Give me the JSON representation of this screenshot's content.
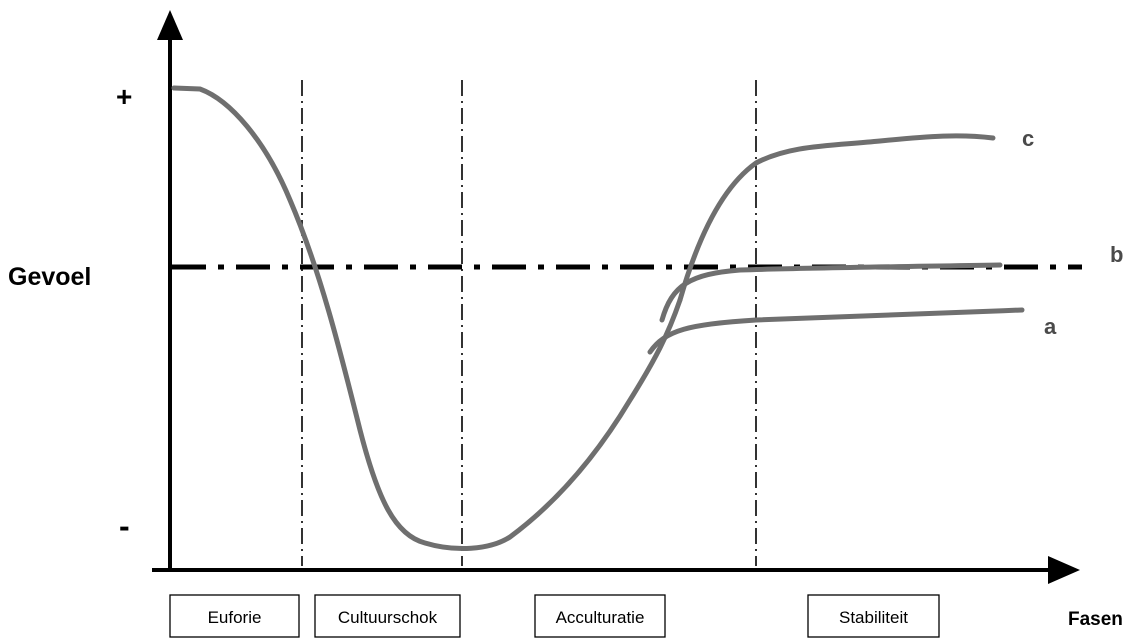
{
  "y_axis": {
    "title": "Gevoel",
    "positive_label": "+",
    "negative_label": "-"
  },
  "x_axis": {
    "title": "Fasen"
  },
  "phases": [
    {
      "label": "Euforie"
    },
    {
      "label": "Cultuurschok"
    },
    {
      "label": "Acculturatie"
    },
    {
      "label": "Stabiliteit"
    }
  ],
  "reference_line_label": "b",
  "curves": [
    {
      "label": "a",
      "color": "#6f6f6f"
    },
    {
      "label": "c",
      "color": "#6f6f6f"
    }
  ],
  "colors": {
    "axis": "#000000",
    "curve": "#6f6f6f",
    "curve_label": "#4a4a4a"
  }
}
